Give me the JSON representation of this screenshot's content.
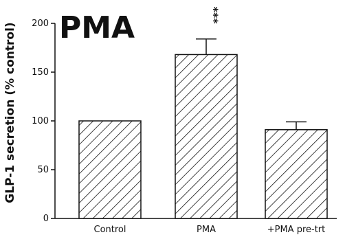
{
  "chart_data": {
    "type": "bar",
    "title": "PMA",
    "xlabel": "",
    "ylabel": "GLP-1 secretion (% control)",
    "ylim": [
      0,
      200
    ],
    "yticks": [
      0,
      50,
      100,
      150,
      200
    ],
    "categories": [
      "Control",
      "PMA",
      "+PMA pre-trt"
    ],
    "values": [
      100,
      168,
      91
    ],
    "errors": [
      0,
      16,
      8
    ],
    "annotations": [
      {
        "category": "PMA",
        "text": "***"
      }
    ],
    "bar_fill": "hatched",
    "bar_color": "#111111",
    "grid": false,
    "legend": "none"
  }
}
